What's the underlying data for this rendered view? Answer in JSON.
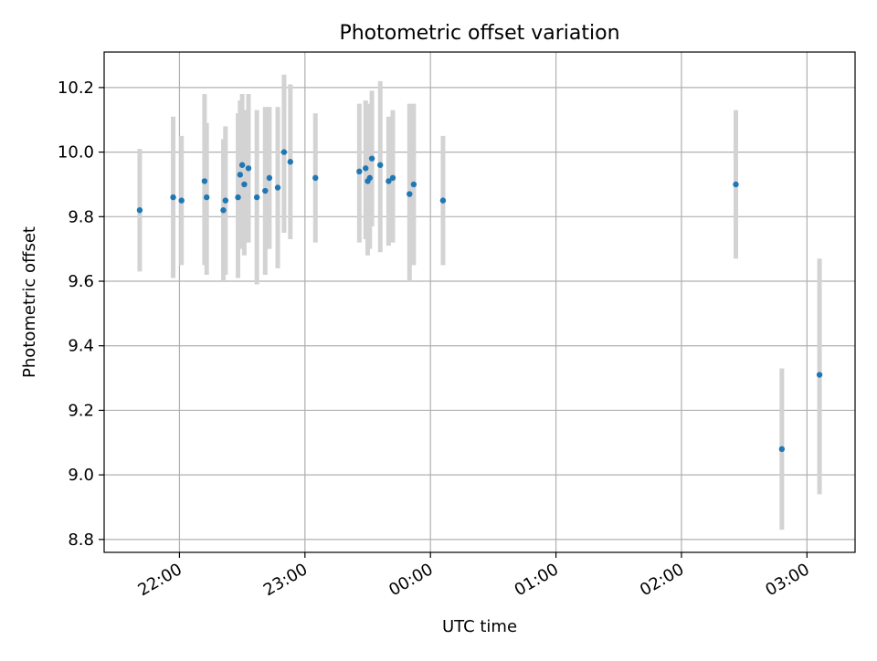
{
  "chart_data": {
    "type": "scatter",
    "title": "Photometric offset variation",
    "xlabel": "UTC time",
    "ylabel": "Photometric offset",
    "x_axis_kind": "time",
    "xlim": [
      "21:24",
      "03:23"
    ],
    "ylim": [
      8.76,
      10.31
    ],
    "x_ticks": [
      "22:00",
      "23:00",
      "00:00",
      "01:00",
      "02:00",
      "03:00"
    ],
    "y_ticks": [
      8.8,
      9.0,
      9.2,
      9.4,
      9.6,
      9.8,
      10.0,
      10.2
    ],
    "y_tick_labels": [
      "8.8",
      "9.0",
      "9.2",
      "9.4",
      "9.6",
      "9.8",
      "10.0",
      "10.2"
    ],
    "grid": true,
    "x_tick_rotation": "30°",
    "colors": {
      "point": "#1f77b4",
      "errorbar": "#d3d3d3",
      "grid": "#b0b0b0"
    },
    "points": [
      {
        "t": "21:41",
        "y": 9.82,
        "lo": 9.63,
        "hi": 10.01
      },
      {
        "t": "21:57",
        "y": 9.86,
        "lo": 9.61,
        "hi": 10.11
      },
      {
        "t": "22:01",
        "y": 9.85,
        "lo": 9.65,
        "hi": 10.05
      },
      {
        "t": "22:12",
        "y": 9.91,
        "lo": 9.65,
        "hi": 10.18
      },
      {
        "t": "22:13",
        "y": 9.86,
        "lo": 9.62,
        "hi": 10.09
      },
      {
        "t": "22:21",
        "y": 9.82,
        "lo": 9.6,
        "hi": 10.04
      },
      {
        "t": "22:22",
        "y": 9.85,
        "lo": 9.62,
        "hi": 10.08
      },
      {
        "t": "22:28",
        "y": 9.86,
        "lo": 9.61,
        "hi": 10.12
      },
      {
        "t": "22:29",
        "y": 9.93,
        "lo": 9.7,
        "hi": 10.16
      },
      {
        "t": "22:30",
        "y": 9.96,
        "lo": 9.75,
        "hi": 10.18
      },
      {
        "t": "22:31",
        "y": 9.9,
        "lo": 9.68,
        "hi": 10.13
      },
      {
        "t": "22:33",
        "y": 9.95,
        "lo": 9.72,
        "hi": 10.18
      },
      {
        "t": "22:37",
        "y": 9.86,
        "lo": 9.59,
        "hi": 10.13
      },
      {
        "t": "22:41",
        "y": 9.88,
        "lo": 9.62,
        "hi": 10.14
      },
      {
        "t": "22:43",
        "y": 9.92,
        "lo": 9.7,
        "hi": 10.14
      },
      {
        "t": "22:47",
        "y": 9.89,
        "lo": 9.64,
        "hi": 10.14
      },
      {
        "t": "22:50",
        "y": 10.0,
        "lo": 9.75,
        "hi": 10.24
      },
      {
        "t": "22:53",
        "y": 9.97,
        "lo": 9.73,
        "hi": 10.21
      },
      {
        "t": "23:05",
        "y": 9.92,
        "lo": 9.72,
        "hi": 10.12
      },
      {
        "t": "23:26",
        "y": 9.94,
        "lo": 9.72,
        "hi": 10.15
      },
      {
        "t": "23:29",
        "y": 9.95,
        "lo": 9.73,
        "hi": 10.16
      },
      {
        "t": "23:30",
        "y": 9.91,
        "lo": 9.68,
        "hi": 10.14
      },
      {
        "t": "23:31",
        "y": 9.92,
        "lo": 9.7,
        "hi": 10.15
      },
      {
        "t": "23:32",
        "y": 9.98,
        "lo": 9.77,
        "hi": 10.19
      },
      {
        "t": "23:36",
        "y": 9.96,
        "lo": 9.69,
        "hi": 10.22
      },
      {
        "t": "23:40",
        "y": 9.91,
        "lo": 9.71,
        "hi": 10.11
      },
      {
        "t": "23:42",
        "y": 9.92,
        "lo": 9.72,
        "hi": 10.13
      },
      {
        "t": "23:50",
        "y": 9.87,
        "lo": 9.6,
        "hi": 10.15
      },
      {
        "t": "23:52",
        "y": 9.9,
        "lo": 9.65,
        "hi": 10.15
      },
      {
        "t": "00:06",
        "y": 9.85,
        "lo": 9.65,
        "hi": 10.05
      },
      {
        "t": "02:26",
        "y": 9.9,
        "lo": 9.67,
        "hi": 10.13
      },
      {
        "t": "02:48",
        "y": 9.08,
        "lo": 8.83,
        "hi": 9.33
      },
      {
        "t": "03:06",
        "y": 9.31,
        "lo": 8.94,
        "hi": 9.67
      }
    ]
  }
}
